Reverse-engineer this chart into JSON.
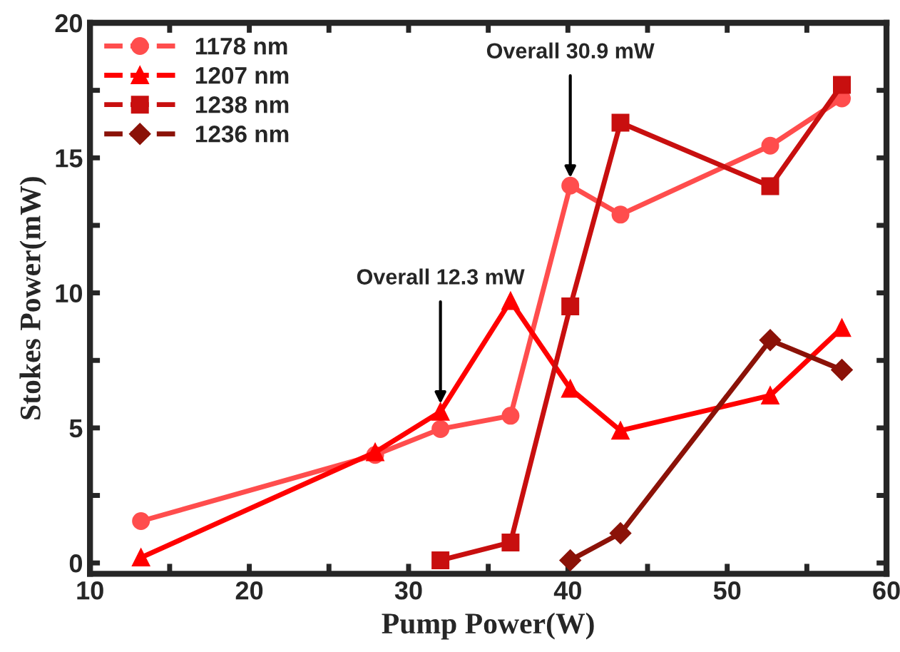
{
  "chart_data": {
    "type": "line",
    "xlabel": "Pump Power(W)",
    "ylabel": "Stokes Power(mW)",
    "xlim": [
      10,
      60
    ],
    "xticks": [
      10,
      {
        "value": 15,
        "label": null
      },
      20,
      {
        "value": 25,
        "label": null
      },
      30,
      {
        "value": 35,
        "label": null
      },
      40,
      {
        "value": 45,
        "label": null
      },
      50,
      {
        "value": 55,
        "label": null
      },
      60
    ],
    "ylim": [
      -0.4,
      20
    ],
    "yticks": [
      0,
      {
        "value": 2.5,
        "label": null
      },
      5,
      {
        "value": 7.5,
        "label": null
      },
      10,
      {
        "value": 12.5,
        "label": null
      },
      15,
      {
        "value": 17.5,
        "label": null
      },
      20
    ],
    "grid": false,
    "legend": "top left",
    "series": [
      {
        "name": "1178 nm",
        "color": "#ff4d4d",
        "marker": "circle",
        "x": [
          13.2,
          27.9,
          32.0,
          36.4,
          40.15,
          43.3,
          52.7,
          57.2
        ],
        "values": [
          1.55,
          4.0,
          4.96,
          5.45,
          13.97,
          12.9,
          15.45,
          17.2
        ]
      },
      {
        "name": "1207 nm",
        "color": "#ff0000",
        "marker": "triangle",
        "x": [
          13.2,
          27.9,
          32.0,
          36.4,
          40.15,
          43.3,
          52.7,
          57.2
        ],
        "values": [
          0.2,
          4.1,
          5.6,
          9.7,
          6.45,
          4.9,
          6.2,
          8.7
        ]
      },
      {
        "name": "1238 nm",
        "color": "#c80f0f",
        "marker": "square",
        "x": [
          32.0,
          36.4,
          40.15,
          43.3,
          52.7,
          57.2
        ],
        "values": [
          0.1,
          0.76,
          9.5,
          16.3,
          13.95,
          17.7
        ]
      },
      {
        "name": "1236 nm",
        "color": "#8b1208",
        "marker": "diamond",
        "x": [
          40.15,
          43.3,
          52.7,
          57.2
        ],
        "values": [
          0.1,
          1.1,
          8.25,
          7.15
        ]
      }
    ],
    "annotations": [
      {
        "text": "Overall 12.3 mW",
        "x": 32.0,
        "y": 5.6
      },
      {
        "text": "Overall 30.9 mW",
        "x": 40.15,
        "y": 13.97
      }
    ]
  }
}
